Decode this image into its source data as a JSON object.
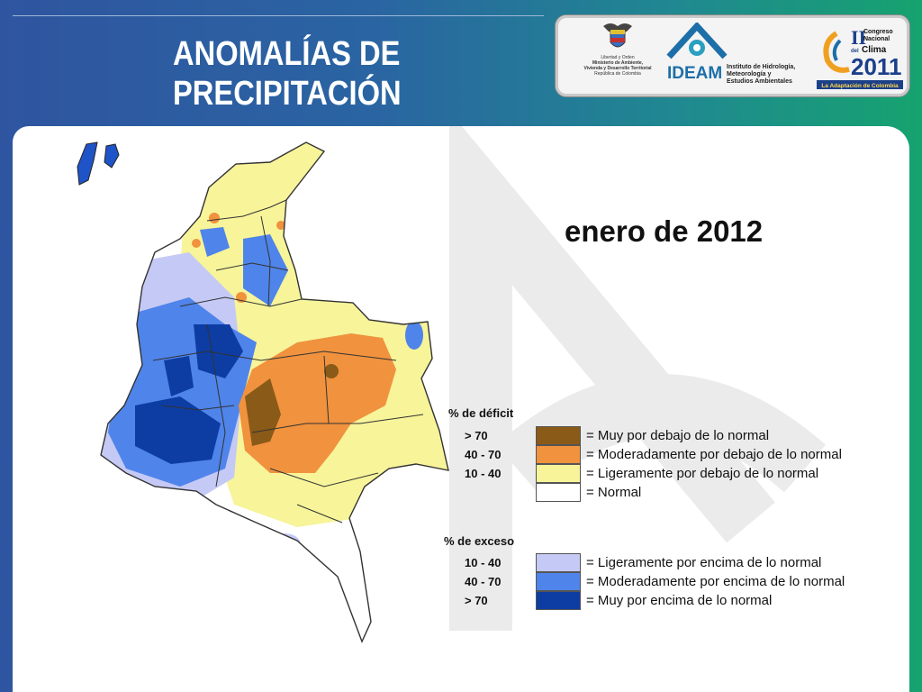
{
  "title_line1": "ANOMALÍAS DE",
  "title_line2": "PRECIPITACIÓN",
  "date": "enero de 2012",
  "logos": {
    "ministry": [
      "Libertad y Orden",
      "Ministerio de Ambiente,",
      "Vivienda y Desarrollo Territorial",
      "República de Colombia"
    ],
    "ideam_name": "IDEAM",
    "ideam_desc": [
      "Instituto de Hidrología,",
      "Meteorología y",
      "Estudios Ambientales"
    ],
    "congreso_lines": [
      "II",
      "Congreso",
      "Nacional",
      "del",
      "Clima",
      "2011",
      "La Adaptación de Colombia"
    ]
  },
  "legend": {
    "deficit_title": "% de déficit",
    "deficit": [
      {
        "range": "> 70",
        "color": "#8a5a18",
        "desc": "= Muy por debajo de lo normal"
      },
      {
        "range": "40 -  70",
        "color": "#f0923e",
        "desc": "= Moderadamente por debajo de lo normal"
      },
      {
        "range": "10 -  40",
        "color": "#f7f49a",
        "desc": "= Ligeramente por debajo de lo normal"
      },
      {
        "range": "",
        "color": "#ffffff",
        "desc": "= Normal"
      }
    ],
    "exceso_title": "% de exceso",
    "exceso": [
      {
        "range": "10 -  40",
        "color": "#c5c9f5",
        "desc": "= Ligeramente por encima de lo normal"
      },
      {
        "range": "40 -  70",
        "color": "#4f84ea",
        "desc": "= Moderadamente por encima de lo normal"
      },
      {
        "range": "> 70",
        "color": "#0d3da3",
        "desc": "= Muy por encima de lo normal"
      }
    ]
  }
}
